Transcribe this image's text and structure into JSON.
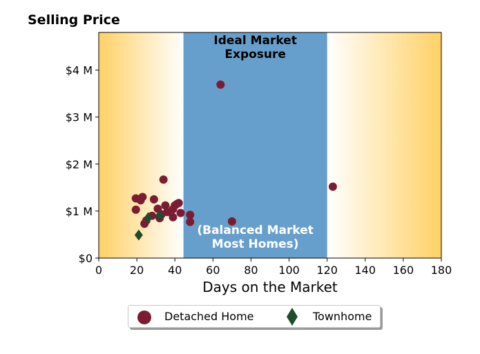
{
  "chart_data": {
    "type": "scatter",
    "title": "Selling Price",
    "xlabel": "Days on the Market",
    "ylabel": "",
    "xlim": [
      0,
      180
    ],
    "ylim": [
      0,
      4800000
    ],
    "xticks": [
      0,
      20,
      40,
      60,
      80,
      100,
      120,
      140,
      160,
      180
    ],
    "yticks": [
      {
        "value": 0,
        "label": "$0"
      },
      {
        "value": 1000000,
        "label": "$1 M"
      },
      {
        "value": 2000000,
        "label": "$2 M"
      },
      {
        "value": 3000000,
        "label": "$3 M"
      },
      {
        "value": 4000000,
        "label": "$4 M"
      }
    ],
    "grid": false,
    "legend_position": "bottom-center",
    "band": {
      "x_start": 44.5,
      "x_end": 120,
      "color": "#679fcc",
      "top_label": "Ideal Market\nExposure",
      "bottom_label": "(Balanced Market\nMost Homes)"
    },
    "side_gradient_color": "#ffd166",
    "series": [
      {
        "name": "Detached Home",
        "marker": "circle",
        "color": "#7a1c32",
        "points": [
          [
            19.5,
            1270000
          ],
          [
            19.5,
            1030000
          ],
          [
            22,
            1230000
          ],
          [
            23,
            1300000
          ],
          [
            24,
            730000
          ],
          [
            25,
            800000
          ],
          [
            28,
            900000
          ],
          [
            29,
            1250000
          ],
          [
            31,
            1050000
          ],
          [
            32,
            850000
          ],
          [
            33,
            930000
          ],
          [
            34,
            1670000
          ],
          [
            35,
            1120000
          ],
          [
            36,
            980000
          ],
          [
            39,
            870000
          ],
          [
            39,
            1040000
          ],
          [
            40,
            1120000
          ],
          [
            41,
            1150000
          ],
          [
            42,
            1170000
          ],
          [
            43,
            960000
          ],
          [
            48,
            770000
          ],
          [
            48,
            920000
          ],
          [
            64,
            3690000
          ],
          [
            70,
            780000
          ],
          [
            123,
            1520000
          ]
        ]
      },
      {
        "name": "Townhome",
        "marker": "diamond",
        "color": "#1e4d2b",
        "points": [
          [
            21,
            490000
          ],
          [
            26,
            860000
          ],
          [
            32,
            910000
          ]
        ]
      }
    ]
  }
}
